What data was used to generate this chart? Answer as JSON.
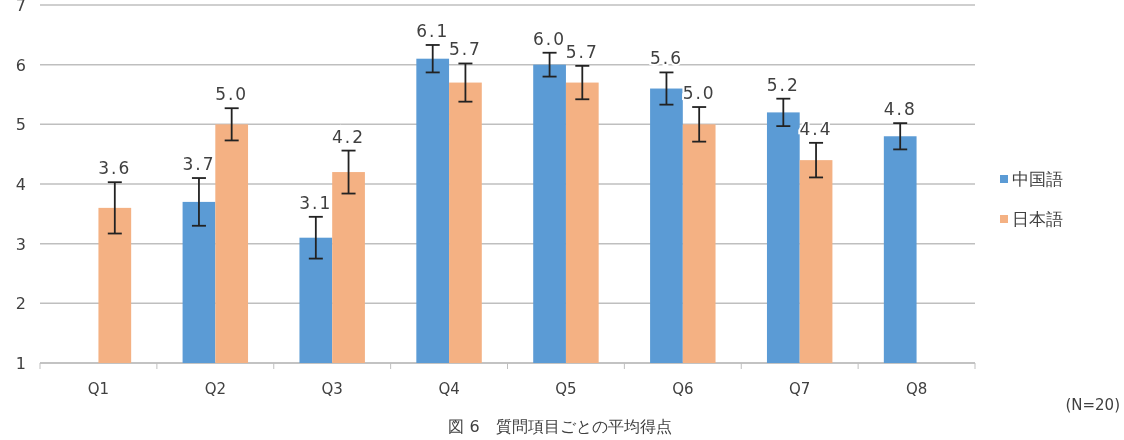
{
  "chart_data": {
    "type": "bar",
    "categories": [
      "Q1",
      "Q2",
      "Q3",
      "Q4",
      "Q5",
      "Q6",
      "Q7",
      "Q8"
    ],
    "series": [
      {
        "name": "中国語",
        "color": "#5b9bd5",
        "values": [
          null,
          3.7,
          3.1,
          6.1,
          6.0,
          5.6,
          5.2,
          4.8
        ],
        "errors": [
          null,
          0.4,
          0.35,
          0.23,
          0.2,
          0.27,
          0.23,
          0.22
        ],
        "value_labels": [
          null,
          "3.7",
          "3.1",
          "6.1",
          "6.0",
          "5.6",
          "5.2",
          "4.8"
        ]
      },
      {
        "name": "日本語",
        "color": "#f4b183",
        "values": [
          3.6,
          5.0,
          4.2,
          5.7,
          5.7,
          5.0,
          4.4,
          null
        ],
        "errors": [
          0.43,
          0.27,
          0.36,
          0.32,
          0.28,
          0.29,
          0.29,
          null
        ],
        "value_labels": [
          "3.6",
          "5.0",
          "4.2",
          "5.7",
          "5.7",
          "5.0",
          "4.4",
          null
        ]
      }
    ],
    "ylim": [
      1,
      7
    ],
    "yticks": [
      1,
      2,
      3,
      4,
      5,
      6,
      7
    ],
    "grid": "y",
    "legend": "right",
    "annotations": [
      "(N=20)",
      "図 6　質問項目ごとの平均得点"
    ]
  }
}
